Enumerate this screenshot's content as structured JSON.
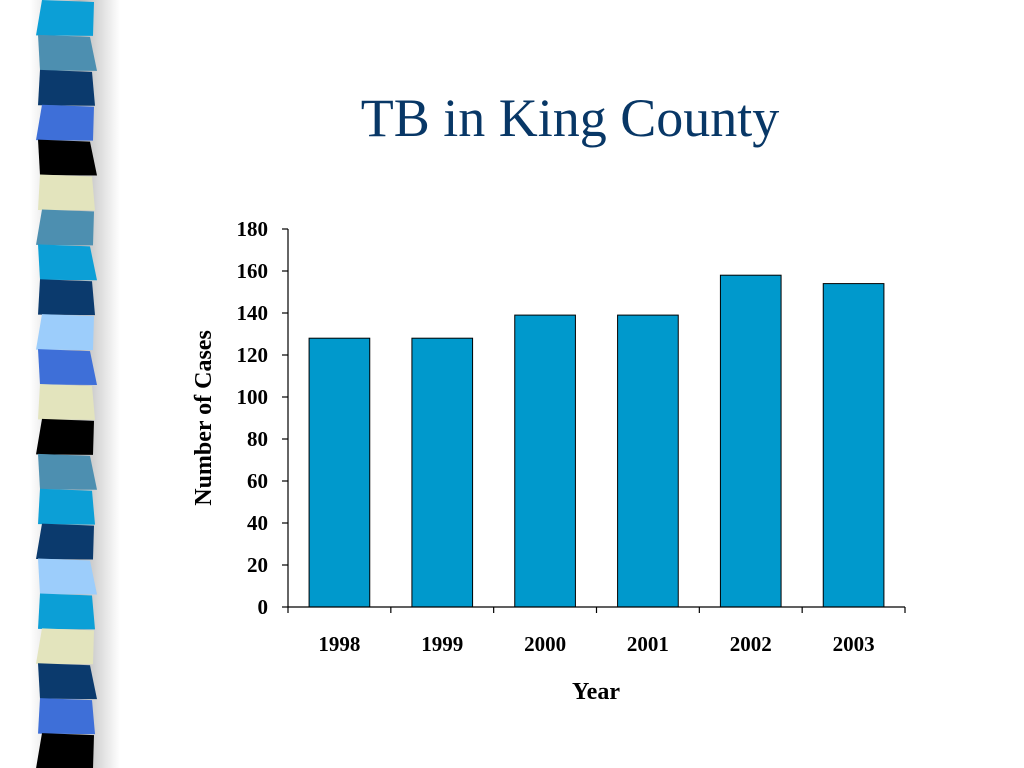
{
  "slide": {
    "title": "TB in King County"
  },
  "chart_data": {
    "type": "bar",
    "categories": [
      "1998",
      "1999",
      "2000",
      "2001",
      "2002",
      "2003"
    ],
    "values": [
      128,
      128,
      139,
      139,
      158,
      154
    ],
    "xlabel": "Year",
    "ylabel": "Number of Cases",
    "ylim": [
      0,
      180
    ],
    "yticks": [
      0,
      20,
      40,
      60,
      80,
      100,
      120,
      140,
      160,
      180
    ],
    "bar_color": "#0099CC",
    "grid": false,
    "legend": "none"
  }
}
